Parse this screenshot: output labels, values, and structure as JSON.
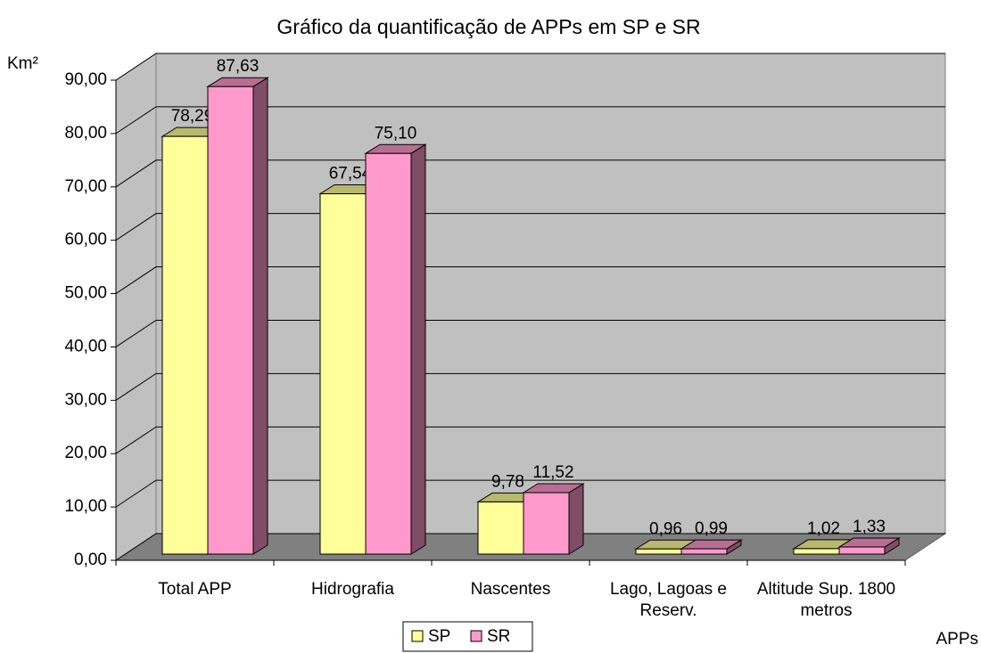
{
  "chart_data": {
    "type": "bar3d",
    "title": "Gráfico da quantificação de APPs em SP e SR",
    "y_label": "Km²",
    "x_label": "APPs",
    "categories": [
      "Total APP",
      "Hidrografia",
      "Nascentes",
      "Lago, Lagoas e Reserv.",
      "Altitude Sup. 1800 metros"
    ],
    "series": [
      {
        "name": "SP",
        "color": "#ffff99",
        "values": [
          78.29,
          67.54,
          9.78,
          0.96,
          1.02
        ],
        "value_labels": [
          "78,29",
          "67,54",
          "9,78",
          "0,96",
          "1,02"
        ]
      },
      {
        "name": "SR",
        "color": "#ff99cc",
        "values": [
          87.63,
          75.1,
          11.52,
          0.99,
          1.33
        ],
        "value_labels": [
          "87,63",
          "75,10",
          "11,52",
          "0,99",
          "1,33"
        ]
      }
    ],
    "ylim": [
      0,
      90
    ],
    "yticks": [
      {
        "value": 0,
        "label": "0,00"
      },
      {
        "value": 10,
        "label": "10,00"
      },
      {
        "value": 20,
        "label": "20,00"
      },
      {
        "value": 30,
        "label": "30,00"
      },
      {
        "value": 40,
        "label": "40,00"
      },
      {
        "value": 50,
        "label": "50,00"
      },
      {
        "value": 60,
        "label": "60,00"
      },
      {
        "value": 70,
        "label": "70,00"
      },
      {
        "value": 80,
        "label": "80,00"
      },
      {
        "value": 90,
        "label": "90,00"
      }
    ],
    "grid": true,
    "legend": "bottom"
  }
}
